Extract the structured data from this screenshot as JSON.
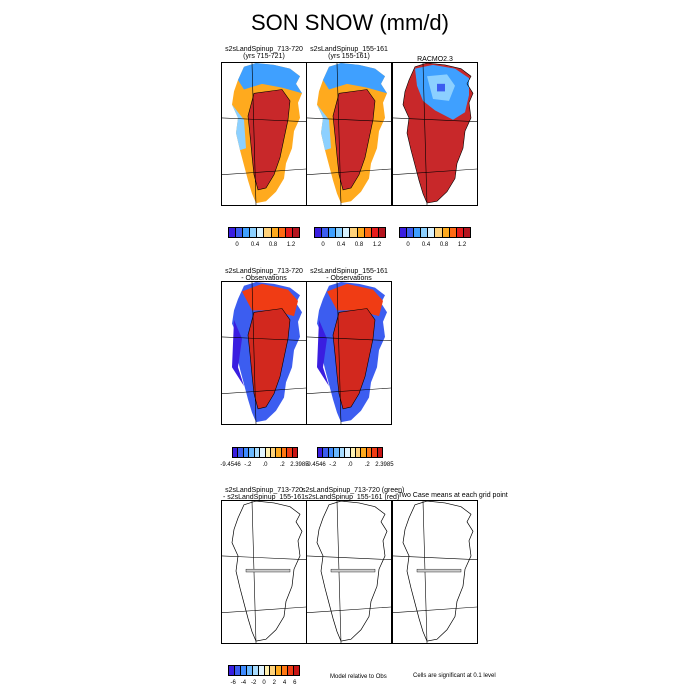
{
  "title": "SON SNOW (mm/d)",
  "row1": {
    "panel1": {
      "line1": "s2sLandSpinup_713-720",
      "line2": "(yrs 715-721)"
    },
    "panel2": {
      "line1": "s2sLandSpinup_155-161",
      "line2": "(yrs 155-161)"
    },
    "panel3": {
      "line1": "RACMO2.3"
    },
    "ticks": [
      "0",
      "0.4",
      "0.8",
      "1.2"
    ],
    "colors": [
      "#3a1ee0",
      "#3c5df0",
      "#3fa0ff",
      "#8cd0ff",
      "#d8f2ff",
      "#ffd27a",
      "#ffaa1e",
      "#ff6a14",
      "#e61c1c",
      "#b4141e"
    ]
  },
  "row2": {
    "panel1": {
      "line1": "s2sLandSpinup_713-720",
      "line2": "- Observations"
    },
    "panel2": {
      "line1": "s2sLandSpinup_155-161",
      "line2": "- Observations"
    },
    "ticks_a": [
      "-9.4546",
      "-.2",
      ".0",
      ".2",
      "2.3985"
    ],
    "ticks_b": [
      "-9.4546",
      "-.2",
      ".0",
      ".2",
      "2.3985"
    ],
    "colors": [
      "#3a1ee0",
      "#3c5df0",
      "#3f8cff",
      "#6ab8ff",
      "#a8dcff",
      "#e0f4ff",
      "#fff0b0",
      "#ffd27a",
      "#ffaa1e",
      "#ff7814",
      "#f03c14",
      "#c81414"
    ]
  },
  "row3": {
    "panel1": {
      "line1": "s2sLandSpinup_713-720",
      "line2": "- s2sLandSpinup_155-161"
    },
    "panel2": {
      "line1": "s2sLandSpinup_713-720 (green)",
      "line2": "s2sLandSpinup_155-161 (red)"
    },
    "panel3": {
      "line1": "Two Case means at each grid point"
    },
    "ticks": [
      "-6",
      "-4",
      "-2",
      "0",
      "2",
      "4",
      "6"
    ],
    "colors": [
      "#3a1ee0",
      "#3c5df0",
      "#3f8cff",
      "#6ab8ff",
      "#a8dcff",
      "#e0f4ff",
      "#fff0b0",
      "#ffd27a",
      "#ffaa1e",
      "#ff7814",
      "#f03c14",
      "#c81414"
    ],
    "note_left": "Model relative to Obs",
    "note_right": "Cells are significant at 0.1 level"
  }
}
